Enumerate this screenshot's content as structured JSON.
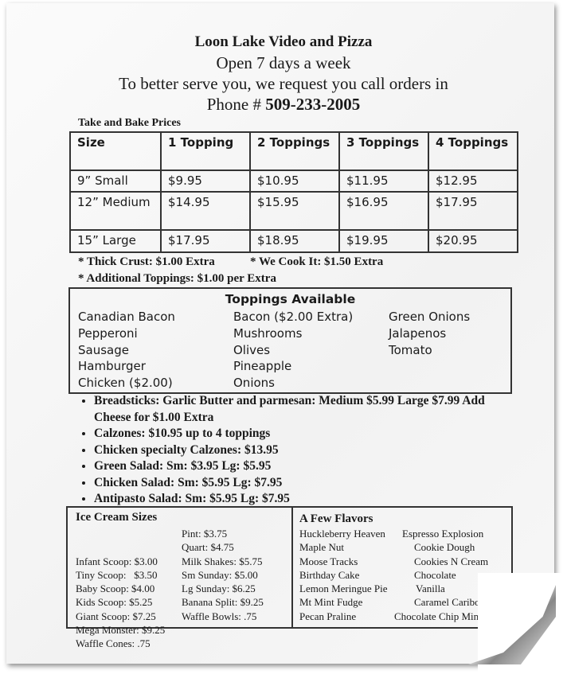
{
  "header": {
    "name": "Loon Lake Video and Pizza",
    "hours": "Open 7 days a week",
    "request": "To better serve you, we request you call orders in",
    "phone_label": "Phone # ",
    "phone": "509-233-2005"
  },
  "take_and_bake": {
    "title": "Take and Bake Prices",
    "columns": [
      "Size",
      "1 Topping",
      "2 Toppings",
      "3 Toppings",
      "4 Toppings"
    ],
    "rows": [
      [
        "9” Small",
        "$9.95",
        "$10.95",
        "$11.95",
        "$12.95"
      ],
      [
        "12” Medium",
        "$14.95",
        "$15.95",
        "$16.95",
        "$17.95"
      ],
      [
        "15” Large",
        "$17.95",
        "$18.95",
        "$19.95",
        "$20.95"
      ]
    ],
    "notes": [
      "* Thick Crust: $1.00 Extra",
      "* We Cook It: $1.50 Extra",
      "* Additional Toppings: $1.00 per Extra"
    ]
  },
  "toppings": {
    "title": "Toppings Available",
    "col1": [
      "Canadian Bacon",
      "Pepperoni",
      "Sausage",
      "Hamburger",
      "Chicken ($2.00)"
    ],
    "col2": [
      "Bacon ($2.00 Extra)",
      "Mushrooms",
      "Olives",
      "Pineapple",
      "Onions"
    ],
    "col3": [
      "Green Onions",
      "Jalapenos",
      "Tomato"
    ]
  },
  "items": [
    "Breadsticks: Garlic Butter and parmesan: Medium $5.99 Large $7.99 Add Cheese for $1.00 Extra",
    "Calzones: $10.95 up to 4 toppings",
    "Chicken specialty Calzones: $13.95",
    "Green Salad: Sm: $3.95 Lg: $5.95",
    "Chicken Salad: Sm: $5.95 Lg: $7.95",
    "Antipasto Salad: Sm: $5.95 Lg: $7.95"
  ],
  "ice_cream": {
    "title": "Ice Cream Sizes",
    "col1": [
      "Infant Scoop: $3.00",
      "Tiny Scoop:   $3.50",
      "Baby Scoop: $4.00",
      "Kids Scoop: $5.25",
      "Giant Scoop: $7.25",
      "Mega Monster: $9.25",
      "Waffle Cones: .75"
    ],
    "col2": [
      "Pint: $3.75",
      "Quart: $4.75",
      "Milk Shakes: $5.75",
      "Sm Sunday: $5.00",
      "Lg Sunday: $6.25",
      "Banana Split: $9.25",
      "Waffle Bowls: .75"
    ]
  },
  "flavors": {
    "title": "A Few Flavors",
    "col1": [
      "Huckleberry Heaven",
      "Maple Nut",
      "Moose Tracks",
      "Birthday Cake",
      "Lemon Meringue Pie",
      "Mt Mint Fudge",
      "Pecan Praline"
    ],
    "col2": [
      "Espresso Explosion",
      "Cookie Dough",
      "Cookies N Cream",
      "Chocolate",
      "Vanilla",
      "Caramel Caribou",
      "Chocolate Chip Mint"
    ]
  }
}
